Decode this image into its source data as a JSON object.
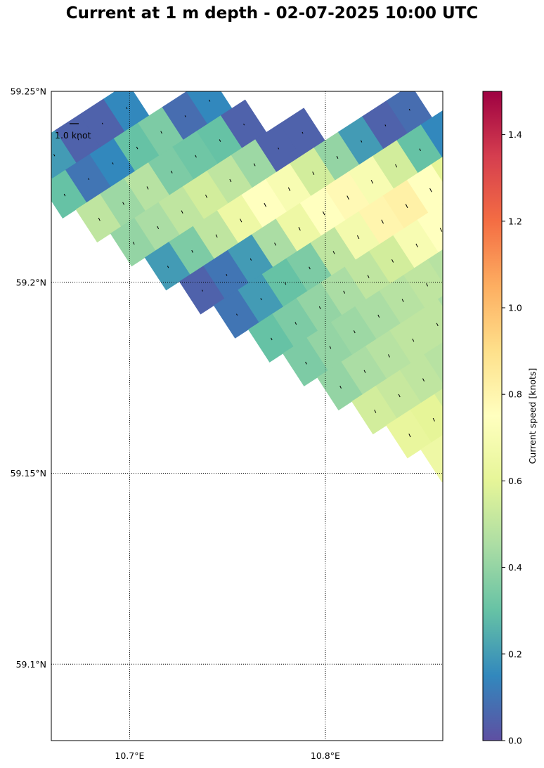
{
  "chart_data": {
    "type": "heatmap",
    "title": "Current at 1 m depth - 02-07-2025 10:00 UTC",
    "map": {
      "lon_range": [
        10.66,
        10.86
      ],
      "lat_range": [
        59.08,
        59.25
      ],
      "lon_ticks": [
        {
          "value": 10.7,
          "label": "10.7°E"
        },
        {
          "value": 10.8,
          "label": "10.8°E"
        }
      ],
      "lat_ticks": [
        {
          "value": 59.25,
          "label": "59.25°N"
        },
        {
          "value": 59.2,
          "label": "59.2°N"
        },
        {
          "value": 59.15,
          "label": "59.15°N"
        },
        {
          "value": 59.1,
          "label": "59.1°N"
        }
      ],
      "gridlines": "dotted",
      "quiver_scale_label": "1.0 knot",
      "quiver_scale_position": "top-left"
    },
    "colorbar": {
      "label": "Current speed [knots]",
      "range": [
        0.0,
        1.5
      ],
      "ticks": [
        "0.0",
        "0.2",
        "0.4",
        "0.6",
        "0.8",
        "1.0",
        "1.2",
        "1.4"
      ],
      "colormap": "Spectral_r",
      "colors": [
        "#5e4fa2",
        "#3288bd",
        "#66c2a5",
        "#abdda4",
        "#e6f598",
        "#ffffbf",
        "#fee08b",
        "#fdae61",
        "#f46d43",
        "#d53e4f",
        "#9e0142"
      ]
    },
    "grid_rotation_deg": -33,
    "speed_field_columns_description": "approximate speed values (knots) per rotated grid row, columns west to east",
    "speed_rows": [
      [
        0.35,
        0.2,
        0.05,
        0.05,
        0.15
      ],
      [
        0.3,
        0.1,
        0.15,
        0.3,
        0.35,
        0.08,
        0.15
      ],
      [
        0.5,
        0.42,
        0.48,
        0.35,
        0.32,
        0.3,
        0.05
      ],
      [
        0.4,
        0.45,
        0.5,
        0.55,
        0.5,
        0.42,
        0.05,
        0.05
      ],
      [
        0.2,
        0.35,
        0.5,
        0.65,
        0.75,
        0.7,
        0.55,
        0.4,
        0.2,
        0.05,
        0.08
      ],
      [
        0.05,
        0.1,
        0.2,
        0.45,
        0.65,
        0.75,
        0.78,
        0.7,
        0.55,
        0.3,
        0.15,
        0.15,
        0.05
      ],
      [
        0.1,
        0.2,
        0.3,
        0.35,
        0.5,
        0.68,
        0.8,
        0.82,
        0.75,
        0.6,
        0.5,
        0.35,
        0.25,
        0.3,
        0.35
      ],
      [
        0.3,
        0.35,
        0.4,
        0.45,
        0.5,
        0.55,
        0.7,
        0.75,
        0.72,
        0.68,
        0.65,
        0.6,
        0.62,
        0.55,
        0.45,
        0.4
      ],
      [
        0.35,
        0.4,
        0.42,
        0.45,
        0.48,
        0.5,
        0.48,
        0.35,
        0.2,
        0.3,
        0.4,
        0.45,
        0.5,
        0.4,
        0.3,
        0.25
      ],
      [
        0.4,
        0.45,
        0.48,
        0.5,
        0.5,
        0.45,
        0.4,
        0.3,
        0.15,
        0.1,
        0.2,
        0.3,
        0.35,
        0.3,
        0.1,
        0.05
      ],
      [
        0.55,
        0.52,
        0.5,
        0.48,
        0.45,
        0.42,
        0.35,
        0.25,
        0.18,
        0.15,
        0.3,
        0.4,
        0.38,
        0.3,
        0.2
      ],
      [
        0.62,
        0.6,
        0.55,
        0.5,
        0.45,
        0.4,
        0.35,
        0.3,
        0.25,
        0.2,
        0.35,
        0.42,
        0.4,
        0.3
      ],
      [
        0.65,
        0.62,
        0.58,
        0.52,
        0.45,
        0.4,
        0.35,
        0.3,
        0.32,
        0.38,
        0.4,
        0.35,
        0.15,
        0.1
      ]
    ]
  }
}
